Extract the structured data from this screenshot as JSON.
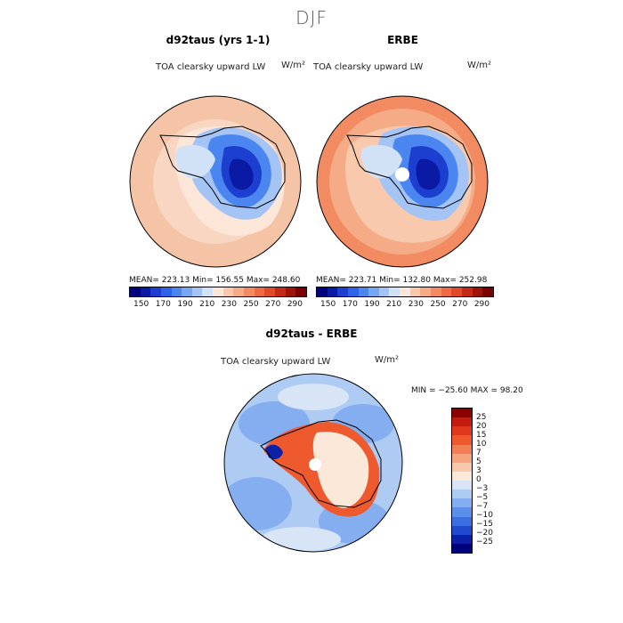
{
  "figure": {
    "title": "DJF",
    "panel1": {
      "title": "d92taus (yrs 1-1)",
      "variable": "TOA clearsky upward LW",
      "units": "W/m²",
      "stats": "MEAN= 223.13   Min= 156.55   Max= 248.60"
    },
    "panel2": {
      "title": "ERBE",
      "variable": "TOA clearsky upward LW",
      "units": "W/m²",
      "stats": "MEAN= 223.71   Min= 132.80   Max= 252.98"
    },
    "panel3": {
      "title": "d92taus - ERBE",
      "variable": "TOA clearsky upward LW",
      "units": "W/m²",
      "stats": "MIN = −25.60 MAX =  98.20"
    },
    "colorbar_top": {
      "ticks": [
        "150",
        "170",
        "190",
        "210",
        "230",
        "250",
        "270",
        "290"
      ],
      "colors": [
        "#00007f",
        "#0a1aa5",
        "#1c3fd0",
        "#2f62e6",
        "#4b86f0",
        "#76a7f3",
        "#a3c4f4",
        "#d1e1f6",
        "#fbe6d8",
        "#f8c9ac",
        "#f5ab86",
        "#f28a62",
        "#ee6a44",
        "#e04a2c",
        "#c52a18",
        "#9d1408",
        "#7a0000"
      ]
    },
    "colorbar_diff": {
      "labels": [
        "25",
        "20",
        "15",
        "10",
        "7",
        "5",
        "3",
        "0",
        "−3",
        "−5",
        "−7",
        "−10",
        "−15",
        "−20",
        "−25"
      ],
      "colors": [
        "#8b0000",
        "#c51b0e",
        "#e0381a",
        "#ee5a2e",
        "#f27e55",
        "#f5a47f",
        "#f8c8ac",
        "#fbe8d8",
        "#d7e5f7",
        "#aecbf3",
        "#85aef0",
        "#5c8eeb",
        "#3b6de3",
        "#2049cf",
        "#0c21a8",
        "#00007f"
      ]
    }
  }
}
